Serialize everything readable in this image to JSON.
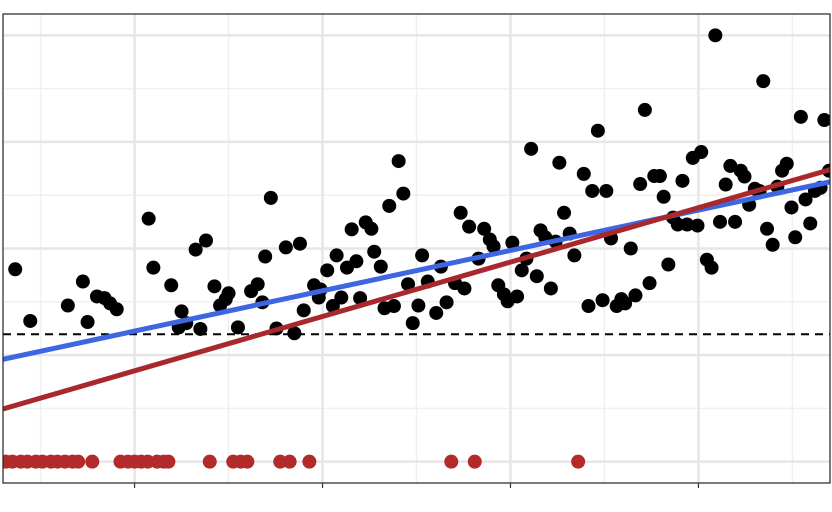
{
  "chart_data": {
    "type": "scatter",
    "xlim": [
      -0.4,
      8.4
    ],
    "ylim": [
      -0.4,
      8.4
    ],
    "xticks": [
      1,
      3,
      5,
      7
    ],
    "xminor": [
      0,
      2,
      4,
      6,
      8
    ],
    "yticks": [
      0,
      2,
      4,
      6,
      8
    ],
    "yminor": [
      1,
      3,
      5,
      7
    ],
    "grid": true,
    "series": [
      {
        "color": "#000000",
        "x": [
          -0.27,
          -0.11,
          0.29,
          0.45,
          0.5,
          0.6,
          0.68,
          0.74,
          0.81,
          1.15,
          1.2,
          1.39,
          1.5,
          1.47,
          1.55,
          1.65,
          1.7,
          1.76,
          1.85,
          1.91,
          1.97,
          2.0,
          2.1,
          2.24,
          2.31,
          2.36,
          2.39,
          2.45,
          2.51,
          2.61,
          2.7,
          2.76,
          2.8,
          2.91,
          2.96,
          2.98,
          3.05,
          3.11,
          3.15,
          3.2,
          3.26,
          3.31,
          3.36,
          3.4,
          3.46,
          3.52,
          3.55,
          3.62,
          3.66,
          3.71,
          3.76,
          3.81,
          3.86,
          3.91,
          3.96,
          4.02,
          4.06,
          4.12,
          4.21,
          4.26,
          4.32,
          4.41,
          4.47,
          4.51,
          4.56,
          4.66,
          4.72,
          4.78,
          4.82,
          4.87,
          4.93,
          4.97,
          5.02,
          5.07,
          5.12,
          5.17,
          5.22,
          5.28,
          5.32,
          5.37,
          5.43,
          5.48,
          5.52,
          5.57,
          5.63,
          5.68,
          5.78,
          5.83,
          5.87,
          5.93,
          5.98,
          6.02,
          6.07,
          6.13,
          6.18,
          6.22,
          6.28,
          6.33,
          6.38,
          6.43,
          6.48,
          6.53,
          6.59,
          6.63,
          6.68,
          6.73,
          6.78,
          6.83,
          6.88,
          6.94,
          6.99,
          7.03,
          7.09,
          7.14,
          7.18,
          7.23,
          7.29,
          7.34,
          7.39,
          7.45,
          7.49,
          7.54,
          7.6,
          7.65,
          7.69,
          7.73,
          7.79,
          7.84,
          7.89,
          7.94,
          7.99,
          8.03,
          8.09,
          8.14,
          8.19,
          8.24,
          8.3,
          8.34,
          8.39
        ],
        "values": [
          3.61,
          2.64,
          2.93,
          3.38,
          2.62,
          3.1,
          3.07,
          2.97,
          2.86,
          4.56,
          3.64,
          3.31,
          2.82,
          2.52,
          2.6,
          3.98,
          2.49,
          4.15,
          3.29,
          2.93,
          3.05,
          3.16,
          2.52,
          3.2,
          3.33,
          2.99,
          3.85,
          4.95,
          2.5,
          4.02,
          2.41,
          4.09,
          2.84,
          3.31,
          3.08,
          3.23,
          3.59,
          2.92,
          3.87,
          3.08,
          3.64,
          4.36,
          3.76,
          3.07,
          4.49,
          4.37,
          3.94,
          3.66,
          2.88,
          4.8,
          2.92,
          5.64,
          5.03,
          3.33,
          2.6,
          2.93,
          3.87,
          3.38,
          2.79,
          3.66,
          2.99,
          3.35,
          4.67,
          3.25,
          4.41,
          3.81,
          4.37,
          4.17,
          4.04,
          3.31,
          3.14,
          3.01,
          4.11,
          3.1,
          3.59,
          3.81,
          5.87,
          3.48,
          4.34,
          4.21,
          3.25,
          4.13,
          5.61,
          4.67,
          4.28,
          3.87,
          5.4,
          2.92,
          5.08,
          6.21,
          3.03,
          5.08,
          4.19,
          2.92,
          3.05,
          2.97,
          4.0,
          3.12,
          5.21,
          6.6,
          3.35,
          5.36,
          5.36,
          4.97,
          3.7,
          4.58,
          4.45,
          5.27,
          4.45,
          5.7,
          4.43,
          5.81,
          3.79,
          3.64,
          8.0,
          4.5,
          5.2,
          5.55,
          4.5,
          5.46,
          5.35,
          4.82,
          5.12,
          5.08,
          7.14,
          4.37,
          4.07,
          5.16,
          5.46,
          5.59,
          4.77,
          4.21,
          6.47,
          4.92,
          4.47,
          5.08,
          5.14,
          6.41,
          5.46
        ]
      },
      {
        "color": "#b22a2a",
        "x": [
          -0.37,
          -0.3,
          -0.21,
          -0.14,
          -0.05,
          0.02,
          0.11,
          0.18,
          0.26,
          0.34,
          0.4,
          0.55,
          0.85,
          0.93,
          1.0,
          1.07,
          1.14,
          1.24,
          1.31,
          1.36,
          1.8,
          2.05,
          2.13,
          2.2,
          2.55,
          2.65,
          2.86,
          4.37,
          4.62,
          5.72
        ],
        "values": [
          0,
          0,
          0,
          0,
          0,
          0,
          0,
          0,
          0,
          0,
          0,
          0,
          0,
          0,
          0,
          0,
          0,
          0,
          0,
          0,
          0,
          0,
          0,
          0,
          0,
          0,
          0,
          0,
          0,
          0
        ]
      }
    ],
    "lines": [
      {
        "color": "#3d66e3",
        "x": [
          -0.4,
          8.4
        ],
        "values": [
          1.92,
          5.25
        ]
      },
      {
        "color": "#a8282c",
        "x": [
          -0.4,
          8.4
        ],
        "values": [
          0.99,
          5.48
        ]
      }
    ],
    "hline": {
      "value": 2.39,
      "color": "#000000",
      "dashed": true
    }
  }
}
